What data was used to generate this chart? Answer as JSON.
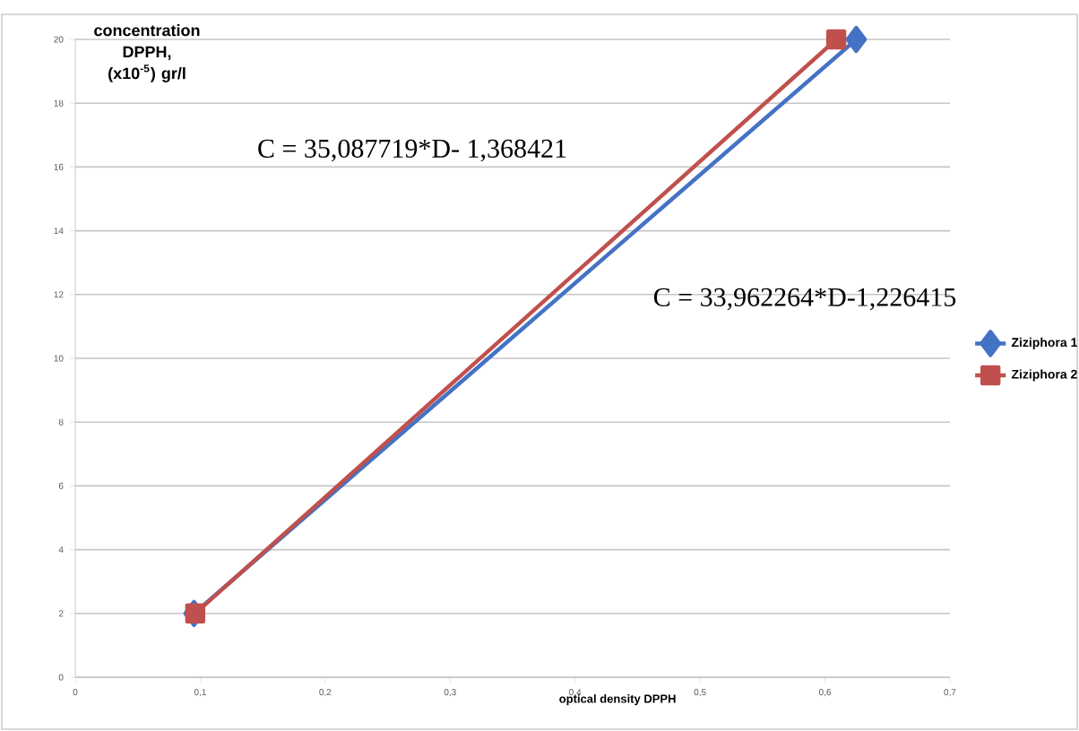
{
  "chart_data": {
    "type": "line",
    "xlabel": "optical density DPPH",
    "ylabel": "concentration DPPH, (x10$^{-5}$) gr/l",
    "annotations": [
      "C = 35,087719*D- 1,368421",
      "C = 33,962264*D-1,226415"
    ],
    "series": [
      {
        "name": "Ziziphora 1",
        "color": "#4472c4",
        "marker": "diamond",
        "x": [
          0.095,
          0.625
        ],
        "values": [
          2,
          20
        ]
      },
      {
        "name": "Ziziphora 2",
        "color": "#c0504d",
        "marker": "square",
        "x": [
          0.096,
          0.609
        ],
        "values": [
          2,
          20
        ]
      }
    ],
    "xlim": [
      0,
      0.7
    ],
    "ylim": [
      0,
      20
    ],
    "xticks": [
      {
        "value": 0,
        "label": "0"
      },
      {
        "value": 0.1,
        "label": "0,1"
      },
      {
        "value": 0.2,
        "label": "0,2"
      },
      {
        "value": 0.3,
        "label": "0,3"
      },
      {
        "value": 0.4,
        "label": "0,4"
      },
      {
        "value": 0.5,
        "label": "0,5"
      },
      {
        "value": 0.6,
        "label": "0,6"
      },
      {
        "value": 0.7,
        "label": "0,7"
      }
    ],
    "yticks": [
      0,
      2,
      4,
      6,
      8,
      10,
      12,
      14,
      16,
      18,
      20
    ],
    "grid": "y",
    "legend": "right",
    "line_style": "solid"
  }
}
